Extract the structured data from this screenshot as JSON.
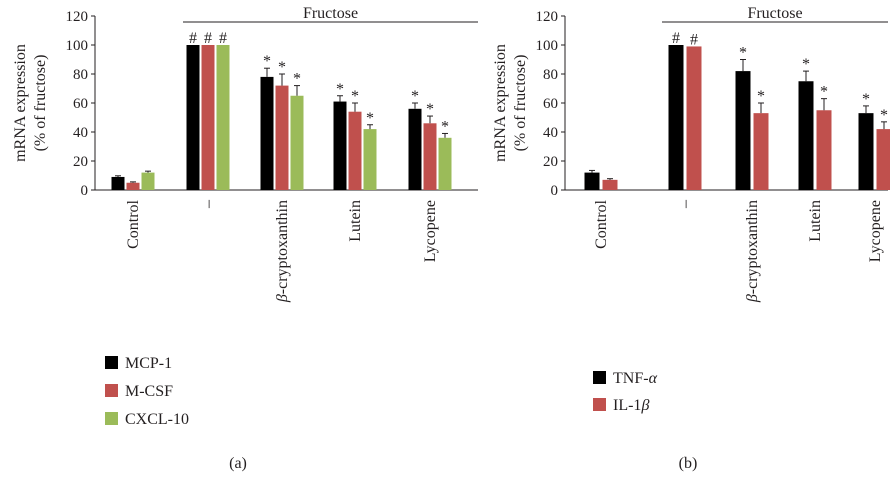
{
  "chart_data": [
    {
      "type": "bar",
      "panel_label": "(a)",
      "ylabel_line1": "mRNA expression",
      "ylabel_line2": "(% of fructose)",
      "ylim": [
        0,
        120
      ],
      "yticks": [
        "0",
        "20",
        "40",
        "60",
        "80",
        "100",
        "120"
      ],
      "group_label": "Fructose",
      "categories": [
        "Control",
        "–",
        "β-cryptoxanthin",
        "Lutein",
        "Lycopene"
      ],
      "category_html": [
        "Control",
        "–",
        "<tspan font-style='italic'>β</tspan>-cryptoxanthin",
        "Lutein",
        "Lycopene"
      ],
      "series": [
        {
          "name": "MCP-1",
          "color": "#000000",
          "values": [
            9,
            100,
            78,
            61,
            56
          ],
          "errors": [
            0.8,
            0,
            6,
            4,
            4
          ],
          "marks": [
            "",
            "#",
            "*",
            "*",
            "*"
          ]
        },
        {
          "name": "M-CSF",
          "color": "#c0504d",
          "values": [
            5,
            100,
            72,
            54,
            46
          ],
          "errors": [
            0.6,
            0,
            8,
            6,
            5
          ],
          "marks": [
            "",
            "#",
            "*",
            "*",
            "*"
          ]
        },
        {
          "name": "CXCL-10",
          "color": "#9bbb59",
          "values": [
            12,
            100,
            65,
            42,
            36
          ],
          "errors": [
            1,
            0,
            7,
            3,
            3
          ],
          "marks": [
            "",
            "#",
            "*",
            "*",
            "*"
          ]
        }
      ],
      "legend_placement": "bottom-left",
      "grid": false
    },
    {
      "type": "bar",
      "panel_label": "(b)",
      "ylabel_line1": "mRNA expression",
      "ylabel_line2": "(% of fructose)",
      "ylim": [
        0,
        120
      ],
      "yticks": [
        "0",
        "20",
        "40",
        "60",
        "80",
        "100",
        "120"
      ],
      "group_label": "Fructose",
      "categories": [
        "Control",
        "–",
        "β-cryptoxanthin",
        "Lutein",
        "Lycopene"
      ],
      "category_html": [
        "Control",
        "–",
        "<tspan font-style='italic'>β</tspan>-cryptoxanthin",
        "Lutein",
        "Lycopene"
      ],
      "series": [
        {
          "name": "TNF-α",
          "name_html": "TNF-<tspan font-style='italic'>α</tspan>",
          "color": "#000000",
          "values": [
            12,
            100,
            82,
            75,
            53
          ],
          "errors": [
            1.5,
            0,
            8,
            7,
            5
          ],
          "marks": [
            "",
            "#",
            "*",
            "*",
            "*"
          ]
        },
        {
          "name": "IL-1β",
          "name_html": "IL-1<tspan font-style='italic'>β</tspan>",
          "color": "#c0504d",
          "values": [
            7,
            99,
            53,
            55,
            42
          ],
          "errors": [
            0.8,
            0,
            7,
            8,
            5
          ],
          "marks": [
            "",
            "#",
            "*",
            "*",
            "*"
          ]
        }
      ],
      "legend_placement": "bottom-left",
      "grid": false
    }
  ]
}
